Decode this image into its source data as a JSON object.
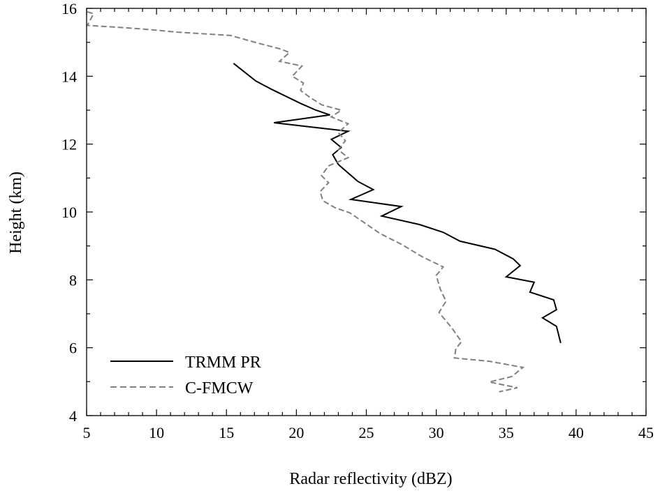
{
  "chart_data": {
    "type": "line",
    "title": "",
    "xlabel": "Radar reflectivity (dBZ)",
    "ylabel": "Height (km)",
    "xlim": [
      5,
      45
    ],
    "ylim": [
      4,
      16
    ],
    "xticks": [
      5,
      10,
      15,
      20,
      25,
      30,
      35,
      40,
      45
    ],
    "yticks": [
      4,
      6,
      8,
      10,
      12,
      14,
      16
    ],
    "grid": false,
    "legend_position": "bottom-left",
    "series": [
      {
        "name": "TRMM PR",
        "color": "#000000",
        "style": "solid",
        "points": [
          [
            15.5,
            14.38
          ],
          [
            17.1,
            13.86
          ],
          [
            18.2,
            13.62
          ],
          [
            20.3,
            13.2
          ],
          [
            21.4,
            13.0
          ],
          [
            22.4,
            12.86
          ],
          [
            18.4,
            12.63
          ],
          [
            23.7,
            12.38
          ],
          [
            22.5,
            12.14
          ],
          [
            23.2,
            11.9
          ],
          [
            22.6,
            11.69
          ],
          [
            23.0,
            11.4
          ],
          [
            24.4,
            10.9
          ],
          [
            25.5,
            10.66
          ],
          [
            23.9,
            10.37
          ],
          [
            27.5,
            10.16
          ],
          [
            26.1,
            9.88
          ],
          [
            28.8,
            9.63
          ],
          [
            30.5,
            9.4
          ],
          [
            31.7,
            9.14
          ],
          [
            34.2,
            8.9
          ],
          [
            35.5,
            8.62
          ],
          [
            36.0,
            8.42
          ],
          [
            35.0,
            8.09
          ],
          [
            37.0,
            7.93
          ],
          [
            36.7,
            7.64
          ],
          [
            38.4,
            7.41
          ],
          [
            38.6,
            7.12
          ],
          [
            37.6,
            6.88
          ],
          [
            38.6,
            6.63
          ],
          [
            38.9,
            6.14
          ]
        ]
      },
      {
        "name": "C-FMCW",
        "color": "#808080",
        "style": "dashed",
        "points": [
          [
            5.05,
            15.9
          ],
          [
            5.5,
            15.84
          ],
          [
            5.05,
            15.5
          ],
          [
            8.8,
            15.4
          ],
          [
            11.5,
            15.3
          ],
          [
            15.3,
            15.2
          ],
          [
            17.3,
            14.97
          ],
          [
            18.9,
            14.8
          ],
          [
            19.5,
            14.7
          ],
          [
            18.8,
            14.44
          ],
          [
            20.4,
            14.3
          ],
          [
            19.7,
            14.0
          ],
          [
            20.5,
            13.8
          ],
          [
            20.3,
            13.58
          ],
          [
            21.0,
            13.37
          ],
          [
            21.8,
            13.16
          ],
          [
            23.2,
            13.0
          ],
          [
            22.5,
            12.8
          ],
          [
            23.7,
            12.6
          ],
          [
            23.0,
            12.34
          ],
          [
            23.5,
            12.1
          ],
          [
            23.0,
            11.83
          ],
          [
            23.7,
            11.6
          ],
          [
            22.3,
            11.36
          ],
          [
            21.8,
            11.07
          ],
          [
            22.3,
            10.86
          ],
          [
            21.7,
            10.6
          ],
          [
            21.9,
            10.33
          ],
          [
            22.8,
            10.12
          ],
          [
            23.8,
            9.98
          ],
          [
            24.8,
            9.7
          ],
          [
            26.0,
            9.36
          ],
          [
            27.5,
            9.05
          ],
          [
            29.0,
            8.68
          ],
          [
            30.5,
            8.38
          ],
          [
            30.0,
            8.13
          ],
          [
            30.3,
            7.72
          ],
          [
            30.7,
            7.37
          ],
          [
            30.2,
            7.04
          ],
          [
            31.1,
            6.59
          ],
          [
            31.8,
            6.18
          ],
          [
            31.4,
            5.97
          ],
          [
            31.3,
            5.7
          ],
          [
            33.8,
            5.6
          ],
          [
            36.2,
            5.42
          ],
          [
            35.4,
            5.15
          ],
          [
            33.8,
            4.99
          ],
          [
            35.8,
            4.82
          ],
          [
            34.5,
            4.7
          ]
        ]
      }
    ]
  }
}
